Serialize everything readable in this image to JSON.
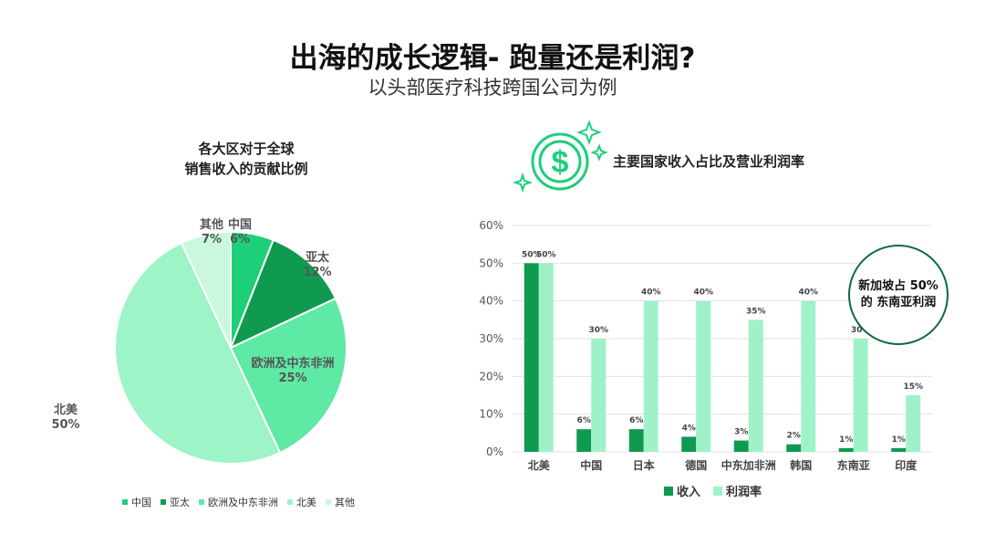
{
  "title": "出海的成长逻辑- 跑量还是利润?",
  "subtitle": "以头部医疗科技跨国公司为例",
  "callout": "新加坡占 50% 的 东南亚利润",
  "colors": {
    "china": "#1ecf7a",
    "apac": "#0f9a50",
    "emea": "#5ee9a4",
    "na": "#9df4c6",
    "other": "#c9f8df",
    "revenue_bar": "#0f9a50",
    "margin_bar": "#9ff2c8",
    "icon": "#1ecf7a"
  },
  "icon": "dollar-coin-sparkle-icon",
  "chart_data": [
    {
      "type": "pie",
      "title": "各大区对于全球\n销售收入的贡献比例",
      "slices": [
        {
          "label": "中国",
          "value": 6,
          "display": "6%"
        },
        {
          "label": "亚太",
          "value": 12,
          "display": "12%"
        },
        {
          "label": "欧洲及中东非洲",
          "value": 25,
          "display": "25%"
        },
        {
          "label": "北美",
          "value": 50,
          "display": "50%"
        },
        {
          "label": "其他",
          "value": 7,
          "display": "7%"
        }
      ],
      "legend": [
        "中国",
        "亚太",
        "欧洲及中东非洲",
        "北美",
        "其他"
      ],
      "legend_position": "bottom"
    },
    {
      "type": "bar",
      "title": "主要国家收入占比及营业利润率",
      "categories": [
        "北美",
        "中国",
        "日本",
        "德国",
        "中东加非洲",
        "韩国",
        "东南亚",
        "印度"
      ],
      "series": [
        {
          "name": "收入",
          "values": [
            50,
            6,
            6,
            4,
            3,
            2,
            1,
            1
          ]
        },
        {
          "name": "利润率",
          "values": [
            50,
            30,
            40,
            40,
            35,
            40,
            30,
            15
          ]
        }
      ],
      "y_ticks": [
        "0%",
        "10%",
        "20%",
        "30%",
        "40%",
        "50%",
        "60%"
      ],
      "ylim": [
        0,
        60
      ],
      "grid": true,
      "legend_position": "bottom"
    }
  ]
}
